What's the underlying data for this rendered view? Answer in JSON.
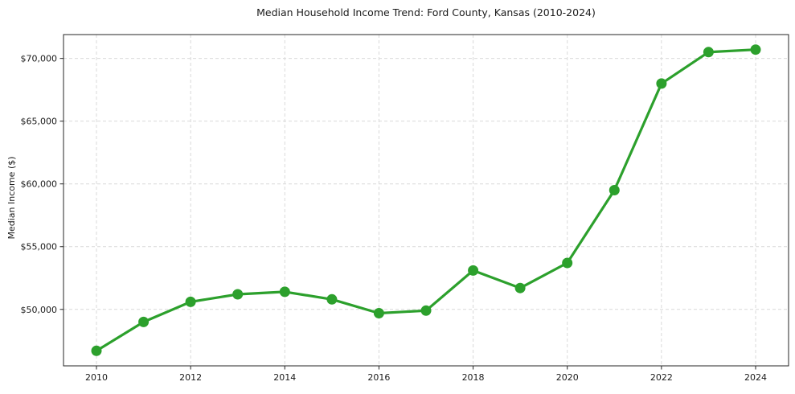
{
  "chart_data": {
    "type": "line",
    "title": "Median Household Income Trend: Ford County, Kansas (2010-2024)",
    "xlabel": "",
    "ylabel": "Median Income ($)",
    "x": [
      2010,
      2011,
      2012,
      2013,
      2014,
      2015,
      2016,
      2017,
      2018,
      2019,
      2020,
      2021,
      2022,
      2023,
      2024
    ],
    "values": [
      46700,
      49000,
      50600,
      51200,
      51400,
      50800,
      49700,
      49900,
      53100,
      51700,
      53700,
      59500,
      68000,
      70500,
      70700
    ],
    "series_name": "Median Household Income",
    "line_color": "#2ca02c",
    "marker": "circle",
    "marker_color": "#2ca02c",
    "grid": true,
    "grid_color": "#d9d9d9",
    "grid_style": "dashed",
    "legend": "none",
    "xlim": [
      2009.3,
      2024.7
    ],
    "ylim": [
      45500,
      71900
    ],
    "xticks": [
      {
        "value": 2010,
        "label": "2010"
      },
      {
        "value": 2012,
        "label": "2012"
      },
      {
        "value": 2014,
        "label": "2014"
      },
      {
        "value": 2016,
        "label": "2016"
      },
      {
        "value": 2018,
        "label": "2018"
      },
      {
        "value": 2020,
        "label": "2020"
      },
      {
        "value": 2022,
        "label": "2022"
      },
      {
        "value": 2024,
        "label": "2024"
      }
    ],
    "yticks": [
      {
        "value": 50000,
        "label": "$50,000"
      },
      {
        "value": 55000,
        "label": "$55,000"
      },
      {
        "value": 60000,
        "label": "$60,000"
      },
      {
        "value": 65000,
        "label": "$65,000"
      },
      {
        "value": 70000,
        "label": "$70,000"
      }
    ]
  }
}
